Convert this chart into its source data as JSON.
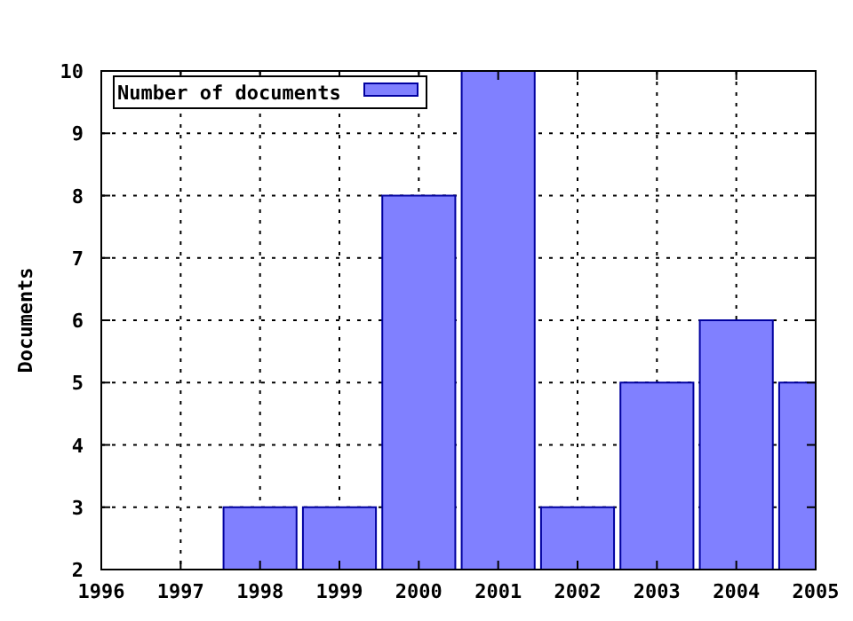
{
  "chart_data": {
    "type": "bar",
    "ylabel": "Documents",
    "x": [
      1998,
      1999,
      2000,
      2001,
      2002,
      2003,
      2004,
      2005
    ],
    "series": [
      {
        "name": "Number of documents",
        "color": "#8080ff",
        "values": [
          3,
          3,
          8,
          10,
          3,
          5,
          6,
          5
        ]
      }
    ],
    "xlim": [
      1996,
      2005
    ],
    "xticks": [
      1996,
      1997,
      1998,
      1999,
      2000,
      2001,
      2002,
      2003,
      2004,
      2005
    ],
    "ylim": [
      2,
      10
    ],
    "yticks": [
      2,
      3,
      4,
      5,
      6,
      7,
      8,
      9,
      10
    ],
    "grid": true,
    "legend": "top left"
  }
}
